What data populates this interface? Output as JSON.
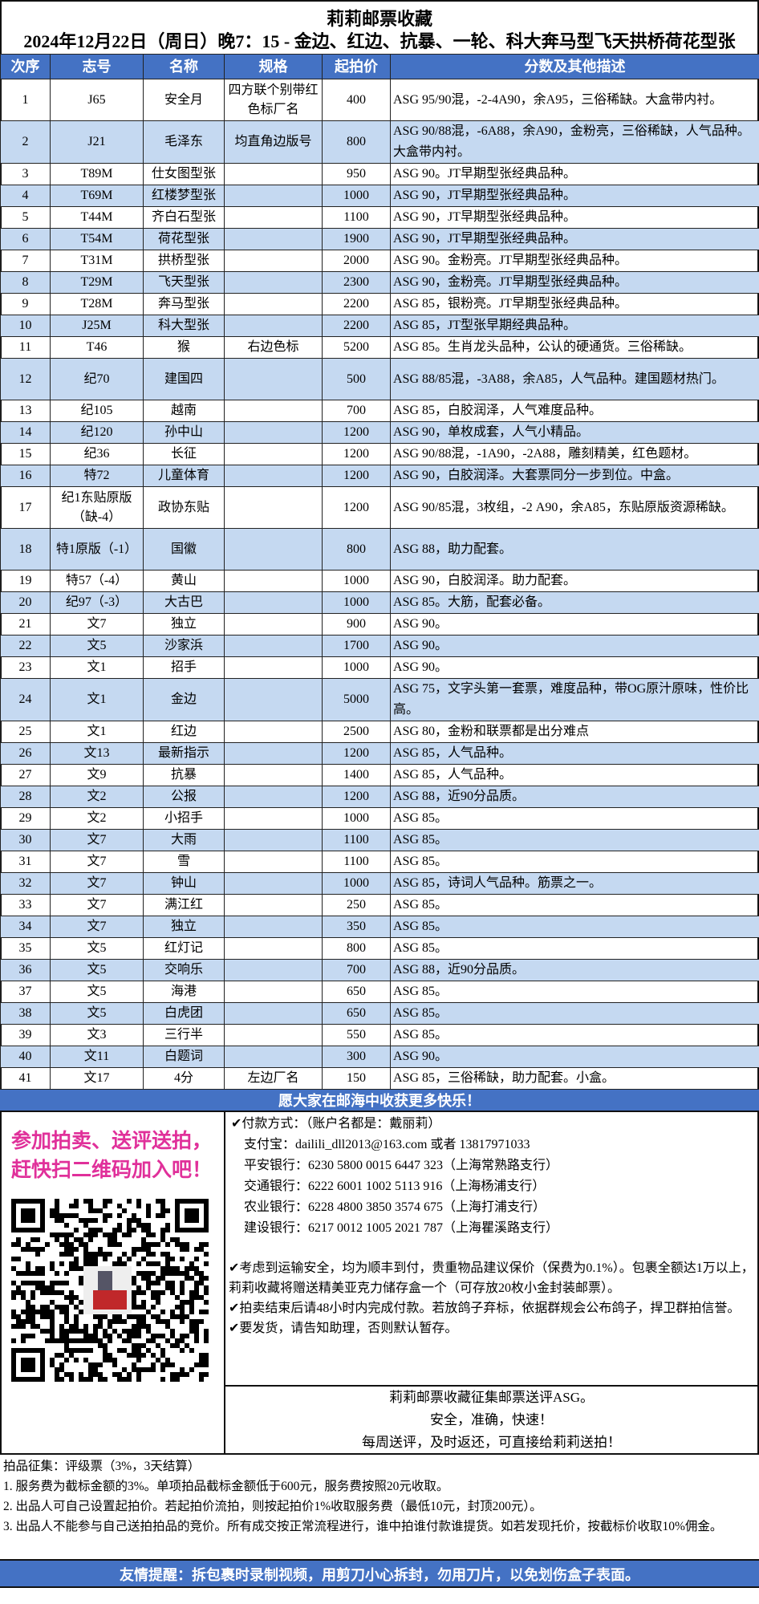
{
  "header": {
    "title": "莉莉邮票收藏",
    "subtitle": "2024年12月22日（周日）晚7：15 - 金边、红边、抗暴、一轮、科大奔马型飞天拱桥荷花型张"
  },
  "colors": {
    "header_blue": "#4472c4",
    "row_alt": "#c5d9f1",
    "promo_pink": "#e0309a"
  },
  "table": {
    "columns": [
      "次序",
      "志号",
      "名称",
      "规格",
      "起拍价",
      "分数及其他描述"
    ],
    "rows": [
      [
        "1",
        "J65",
        "安全月",
        "四方联个别带红色标厂名",
        "400",
        "ASG 95/90混，-2-4A90，余A95，三俗稀缺。大盒带内衬。"
      ],
      [
        "2",
        "J21",
        "毛泽东",
        "均直角边版号",
        "800",
        "ASG 90/88混，-6A88，余A90，金粉亮，三俗稀缺，人气品种。大盒带内衬。"
      ],
      [
        "3",
        "T89M",
        "仕女图型张",
        "",
        "950",
        "ASG 90。JT早期型张经典品种。"
      ],
      [
        "4",
        "T69M",
        "红楼梦型张",
        "",
        "1000",
        "ASG 90，JT早期型张经典品种。"
      ],
      [
        "5",
        "T44M",
        "齐白石型张",
        "",
        "1100",
        "ASG 90，JT早期型张经典品种。"
      ],
      [
        "6",
        "T54M",
        "荷花型张",
        "",
        "1900",
        "ASG 90，JT早期型张经典品种。"
      ],
      [
        "7",
        "T31M",
        "拱桥型张",
        "",
        "2000",
        "ASG 90。金粉亮。JT早期型张经典品种。"
      ],
      [
        "8",
        "T29M",
        "飞天型张",
        "",
        "2300",
        "ASG 90，金粉亮。JT早期型张经典品种。"
      ],
      [
        "9",
        "T28M",
        "奔马型张",
        "",
        "2200",
        "ASG 85，银粉亮。JT早期型张经典品种。"
      ],
      [
        "10",
        "J25M",
        "科大型张",
        "",
        "2200",
        "ASG 85，JT型张早期经典品种。"
      ],
      [
        "11",
        "T46",
        "猴",
        "右边色标",
        "5200",
        "ASG 85。生肖龙头品种，公认的硬通货。三俗稀缺。"
      ],
      [
        "12",
        "纪70",
        "建国四",
        "",
        "500",
        "ASG 88/85混，-3A88，余A85，人气品种。建国题材热门。"
      ],
      [
        "13",
        "纪105",
        "越南",
        "",
        "700",
        "ASG 85，白胶润泽，人气难度品种。"
      ],
      [
        "14",
        "纪120",
        "孙中山",
        "",
        "1200",
        "ASG 90，单枚成套，人气小精品。"
      ],
      [
        "15",
        "纪36",
        "长征",
        "",
        "1200",
        "ASG 90/88混，-1A90，-2A88，雕刻精美，红色题材。"
      ],
      [
        "16",
        "特72",
        "儿童体育",
        "",
        "1200",
        "ASG 90，白胶润泽。大套票同分一步到位。中盒。"
      ],
      [
        "17",
        "纪1东贴原版（缺-4）",
        "政协东贴",
        "",
        "1200",
        "ASG 90/85混，3枚组，-2 A90，余A85，东贴原版资源稀缺。"
      ],
      [
        "18",
        "特1原版（-1）",
        "国徽",
        "",
        "800",
        "ASG 88，助力配套。"
      ],
      [
        "19",
        "特57（-4）",
        "黄山",
        "",
        "1000",
        "ASG 90，白胶润泽。助力配套。"
      ],
      [
        "20",
        "纪97（-3）",
        "大古巴",
        "",
        "1000",
        "ASG 85。大筋，配套必备。"
      ],
      [
        "21",
        "文7",
        "独立",
        "",
        "900",
        "ASG 90。"
      ],
      [
        "22",
        "文5",
        "沙家浜",
        "",
        "1700",
        "ASG 90。"
      ],
      [
        "23",
        "文1",
        "招手",
        "",
        "1000",
        "ASG 90。"
      ],
      [
        "24",
        "文1",
        "金边",
        "",
        "5000",
        "ASG 75，文字头第一套票，难度品种，带OG原汁原味，性价比高。"
      ],
      [
        "25",
        "文1",
        "红边",
        "",
        "2500",
        "ASG 80，金粉和联票都是出分难点"
      ],
      [
        "26",
        "文13",
        "最新指示",
        "",
        "1200",
        "ASG 85，人气品种。"
      ],
      [
        "27",
        "文9",
        "抗暴",
        "",
        "1400",
        "ASG 85，人气品种。"
      ],
      [
        "28",
        "文2",
        "公报",
        "",
        "1200",
        "ASG 88，近90分品质。"
      ],
      [
        "29",
        "文2",
        "小招手",
        "",
        "1000",
        "ASG 85。"
      ],
      [
        "30",
        "文7",
        "大雨",
        "",
        "1100",
        "ASG 85。"
      ],
      [
        "31",
        "文7",
        "雪",
        "",
        "1100",
        "ASG 85。"
      ],
      [
        "32",
        "文7",
        "钟山",
        "",
        "1000",
        "ASG 85，诗词人气品种。筋票之一。"
      ],
      [
        "33",
        "文7",
        "满江红",
        "",
        "250",
        "ASG 85。"
      ],
      [
        "34",
        "文7",
        "独立",
        "",
        "350",
        "ASG 85。"
      ],
      [
        "35",
        "文5",
        "红灯记",
        "",
        "800",
        "ASG 85。"
      ],
      [
        "36",
        "文5",
        "交响乐",
        "",
        "700",
        "ASG 88，近90分品质。"
      ],
      [
        "37",
        "文5",
        "海港",
        "",
        "650",
        "ASG 85。"
      ],
      [
        "38",
        "文5",
        "白虎团",
        "",
        "650",
        "ASG 85。"
      ],
      [
        "39",
        "文3",
        "三行半",
        "",
        "550",
        "ASG 85。"
      ],
      [
        "40",
        "文11",
        "白题词",
        "",
        "300",
        "ASG 90。"
      ],
      [
        "41",
        "文17",
        "4分",
        "左边厂名",
        "150",
        "ASG 85，三俗稀缺，助力配套。小盒。"
      ]
    ]
  },
  "banner": "愿大家在邮海中收获更多快乐！",
  "promo": {
    "line1": "参加拍卖、送评送拍，",
    "line2": "赶快扫二维码加入吧！",
    "qr_icon": "qr-code"
  },
  "payment": {
    "heading": "✔付款方式：（账户名都是：戴丽莉）",
    "alipay": "支付宝：dailili_dll2013@163.com  或者 13817971033",
    "banks": [
      "平安银行：6230 5800 0015 6447 323（上海常熟路支行）",
      "交通银行：6222 6001 1002 5113 916（上海杨浦支行）",
      "农业银行：6228 4800 3850 3574 675（上海打浦支行）",
      "建设银行：6217 0012 1005 2021 787（上海瞿溪路支行）"
    ]
  },
  "notes": [
    "✔考虑到运输安全，均为顺丰到付，贵重物品建议保价（保费为0.1%）。包裹全额达1万以上，莉莉收藏将赠送精美亚克力储存盒一个（可存放20枚小金封装邮票）。",
    "✔拍卖结束后请48小时内完成付款。若放鸽子弃标，依据群规会公布鸽子，捍卫群拍信誉。",
    "✔要发货，请告知助理，否则默认暂存。"
  ],
  "asg": [
    "莉莉邮票收藏征集邮票送评ASG。",
    "安全，准确，快速！",
    "每周送评，及时返还，可直接给莉莉送拍！"
  ],
  "rules": [
    "拍品征集：评级票（3%，3天结算）",
    "1. 服务费为截标金额的3%。单项拍品截标金额低于600元，服务费按照20元收取。",
    "2. 出品人可自己设置起拍价。若起拍价流拍，则按起拍价1%收取服务费（最低10元，封顶200元）。",
    "3. 出品人不能参与自己送拍拍品的竞价。所有成交按正常流程进行，谁中拍谁付款谁提货。如若发现托价，按截标价收取10%佣金。"
  ],
  "footer": "友情提醒：拆包裹时录制视频，用剪刀小心拆封，勿用刀片，以免划伤盒子表面。"
}
